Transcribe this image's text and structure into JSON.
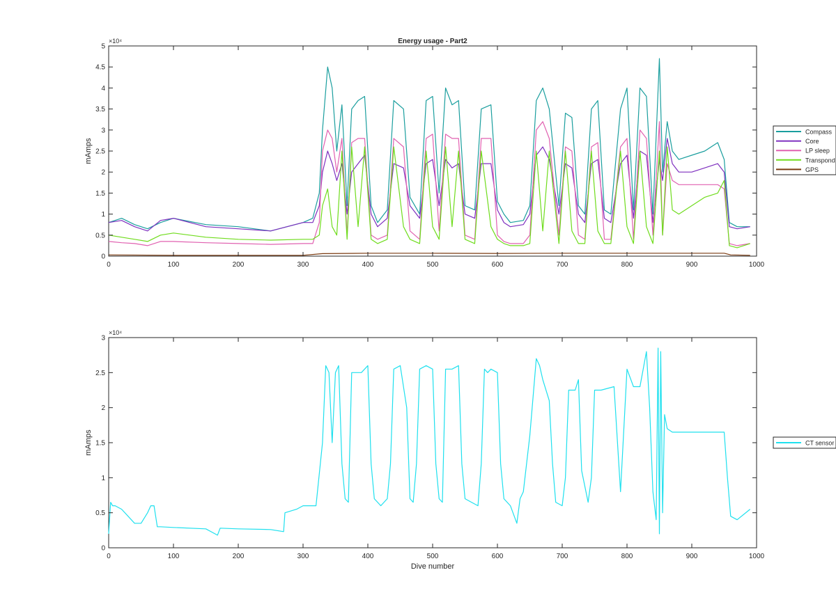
{
  "chart_data": [
    {
      "type": "line",
      "title": "Energy usage - Part2",
      "xlabel": "",
      "ylabel": "mAmps",
      "xlim": [
        0,
        1000
      ],
      "ylim": [
        0,
        50000
      ],
      "y_exponent_label": "×10⁴",
      "xticks": [
        0,
        100,
        200,
        300,
        400,
        500,
        600,
        700,
        800,
        900,
        1000
      ],
      "xtick_labels": [
        "0",
        "100",
        "200",
        "300",
        "400",
        "500",
        "600",
        "700",
        "800",
        "900",
        "1000"
      ],
      "yticks": [
        0,
        5000,
        10000,
        15000,
        20000,
        25000,
        30000,
        35000,
        40000,
        45000,
        50000
      ],
      "ytick_labels": [
        "0",
        "0.5",
        "1",
        "1.5",
        "2",
        "2.5",
        "3",
        "3.5",
        "4",
        "4.5",
        "5"
      ],
      "grid": false,
      "legend_position": "outside-right",
      "series": [
        {
          "name": "Compass",
          "color": "#1a9e9e",
          "x": [
            0,
            20,
            40,
            60,
            80,
            100,
            150,
            200,
            250,
            300,
            315,
            325,
            330,
            338,
            345,
            352,
            360,
            368,
            375,
            385,
            395,
            405,
            415,
            430,
            440,
            455,
            465,
            480,
            490,
            500,
            510,
            520,
            530,
            540,
            550,
            565,
            575,
            590,
            600,
            610,
            620,
            640,
            650,
            660,
            670,
            680,
            695,
            705,
            715,
            725,
            735,
            745,
            755,
            765,
            775,
            790,
            800,
            810,
            820,
            830,
            840,
            850,
            855,
            862,
            870,
            880,
            900,
            920,
            940,
            950,
            958,
            970,
            990
          ],
          "y": [
            8000,
            9000,
            7500,
            6500,
            8000,
            9000,
            7500,
            7000,
            6000,
            8000,
            9000,
            15000,
            30000,
            45000,
            40000,
            25000,
            36000,
            12000,
            35000,
            37000,
            38000,
            12000,
            8000,
            11000,
            37000,
            35000,
            14000,
            10000,
            37000,
            38000,
            15000,
            40000,
            36000,
            37000,
            12000,
            11000,
            35000,
            36000,
            13000,
            10000,
            8000,
            8500,
            12000,
            37000,
            40000,
            35000,
            12000,
            34000,
            33000,
            12000,
            10000,
            35000,
            37000,
            11000,
            10000,
            35000,
            40000,
            11000,
            40000,
            38000,
            10000,
            47000,
            20000,
            32000,
            25000,
            23000,
            24000,
            25000,
            27000,
            23000,
            8000,
            7000,
            7000
          ]
        },
        {
          "name": "Core",
          "color": "#7e2fbf",
          "x": [
            0,
            20,
            40,
            60,
            80,
            100,
            150,
            200,
            250,
            300,
            315,
            325,
            330,
            338,
            345,
            352,
            360,
            368,
            375,
            385,
            395,
            405,
            415,
            430,
            440,
            455,
            465,
            480,
            490,
            500,
            510,
            520,
            530,
            540,
            550,
            565,
            575,
            590,
            600,
            610,
            620,
            640,
            650,
            660,
            670,
            680,
            695,
            705,
            715,
            725,
            735,
            745,
            755,
            765,
            775,
            790,
            800,
            810,
            820,
            830,
            840,
            850,
            855,
            862,
            870,
            880,
            900,
            920,
            940,
            950,
            958,
            970,
            990
          ],
          "y": [
            8000,
            8500,
            7000,
            6000,
            8500,
            9000,
            7000,
            6500,
            6000,
            8000,
            8000,
            12000,
            20000,
            25000,
            22000,
            18000,
            22000,
            10000,
            20000,
            22000,
            24000,
            10000,
            7000,
            9000,
            22000,
            21000,
            12000,
            9000,
            22000,
            23000,
            12000,
            23000,
            21000,
            22000,
            10000,
            9000,
            22000,
            22000,
            11000,
            8000,
            7000,
            7500,
            10000,
            24000,
            26000,
            23000,
            10000,
            22000,
            21000,
            10000,
            8000,
            22000,
            23000,
            9000,
            8000,
            22000,
            24000,
            9000,
            25000,
            24000,
            8000,
            23000,
            18000,
            28000,
            22000,
            20000,
            20000,
            21000,
            22000,
            20000,
            7000,
            6500,
            7000
          ]
        },
        {
          "name": "LP sleep",
          "color": "#e060b0",
          "x": [
            0,
            20,
            40,
            60,
            80,
            100,
            150,
            200,
            250,
            300,
            315,
            325,
            330,
            338,
            345,
            352,
            360,
            368,
            375,
            385,
            395,
            405,
            415,
            430,
            440,
            455,
            465,
            480,
            490,
            500,
            510,
            520,
            530,
            540,
            550,
            565,
            575,
            590,
            600,
            610,
            620,
            640,
            650,
            660,
            670,
            680,
            695,
            705,
            715,
            725,
            735,
            745,
            755,
            765,
            775,
            790,
            800,
            810,
            820,
            830,
            840,
            850,
            855,
            862,
            870,
            880,
            900,
            920,
            940,
            950,
            958,
            970,
            990
          ],
          "y": [
            3500,
            3200,
            3000,
            2500,
            3500,
            3500,
            3200,
            3000,
            2800,
            3000,
            3000,
            8000,
            25000,
            30000,
            28000,
            20000,
            28000,
            5000,
            27000,
            28000,
            28000,
            5000,
            4000,
            5000,
            28000,
            26000,
            6000,
            4000,
            28000,
            29000,
            6000,
            29000,
            28000,
            28000,
            5000,
            4000,
            28000,
            28000,
            5000,
            3500,
            3000,
            3000,
            5000,
            30000,
            32000,
            28000,
            5000,
            26000,
            25000,
            5000,
            4000,
            26000,
            27000,
            4000,
            4000,
            26000,
            28000,
            4000,
            30000,
            28000,
            5000,
            32000,
            5000,
            22000,
            18000,
            17000,
            17000,
            17000,
            17000,
            16000,
            3000,
            2500,
            3000
          ]
        },
        {
          "name": "Transpond",
          "color": "#6fdc1c",
          "x": [
            0,
            20,
            40,
            60,
            80,
            100,
            150,
            200,
            250,
            300,
            315,
            325,
            330,
            338,
            345,
            352,
            360,
            368,
            375,
            385,
            395,
            405,
            415,
            430,
            440,
            455,
            465,
            480,
            490,
            500,
            510,
            520,
            530,
            540,
            550,
            565,
            575,
            590,
            600,
            610,
            620,
            640,
            650,
            660,
            670,
            680,
            695,
            705,
            715,
            725,
            735,
            745,
            755,
            765,
            775,
            790,
            800,
            810,
            820,
            830,
            840,
            850,
            855,
            862,
            870,
            880,
            900,
            920,
            940,
            950,
            958,
            970,
            990
          ],
          "y": [
            5000,
            4500,
            4000,
            3500,
            5000,
            5500,
            4500,
            4000,
            3800,
            4000,
            4000,
            5000,
            12000,
            16000,
            7000,
            5000,
            25000,
            4000,
            26000,
            7000,
            26000,
            4000,
            3000,
            4000,
            26000,
            7000,
            4000,
            3000,
            25000,
            7000,
            4000,
            26000,
            7000,
            25000,
            4000,
            3000,
            25000,
            7000,
            4000,
            3000,
            2500,
            2500,
            3000,
            25000,
            6000,
            25000,
            3000,
            25000,
            6000,
            3000,
            3000,
            25000,
            6000,
            3000,
            3000,
            25000,
            7000,
            3000,
            25000,
            7000,
            3000,
            25000,
            5000,
            26000,
            11000,
            10000,
            12000,
            14000,
            15000,
            18000,
            2500,
            2000,
            3000
          ]
        },
        {
          "name": "GPS",
          "color": "#7a3a10",
          "x": [
            0,
            100,
            200,
            300,
            330,
            400,
            500,
            600,
            700,
            800,
            850,
            900,
            950,
            960,
            990
          ],
          "y": [
            300,
            200,
            200,
            200,
            600,
            700,
            700,
            650,
            700,
            700,
            700,
            700,
            700,
            300,
            200
          ]
        }
      ]
    },
    {
      "type": "line",
      "title": "",
      "xlabel": "Dive number",
      "ylabel": "mAmps",
      "xlim": [
        0,
        1000
      ],
      "ylim": [
        0,
        30000
      ],
      "y_exponent_label": "×10⁴",
      "xticks": [
        0,
        100,
        200,
        300,
        400,
        500,
        600,
        700,
        800,
        900,
        1000
      ],
      "xtick_labels": [
        "0",
        "100",
        "200",
        "300",
        "400",
        "500",
        "600",
        "700",
        "800",
        "900",
        "1000"
      ],
      "yticks": [
        0,
        5000,
        10000,
        15000,
        20000,
        25000,
        30000
      ],
      "ytick_labels": [
        "0",
        "0.5",
        "1",
        "1.5",
        "2",
        "2.5",
        "3"
      ],
      "grid": false,
      "legend_position": "outside-right",
      "series": [
        {
          "name": "CT sensor",
          "color": "#1ee0ee",
          "x": [
            0,
            3,
            6,
            10,
            20,
            40,
            50,
            60,
            65,
            70,
            75,
            77,
            80,
            100,
            150,
            168,
            172,
            200,
            250,
            270,
            272,
            290,
            300,
            320,
            330,
            335,
            340,
            345,
            350,
            355,
            360,
            365,
            370,
            375,
            380,
            390,
            400,
            405,
            410,
            420,
            430,
            435,
            440,
            450,
            460,
            465,
            470,
            475,
            480,
            490,
            500,
            505,
            510,
            515,
            520,
            530,
            540,
            545,
            550,
            560,
            570,
            575,
            580,
            585,
            590,
            600,
            605,
            610,
            620,
            630,
            635,
            640,
            650,
            660,
            665,
            670,
            680,
            685,
            690,
            700,
            705,
            710,
            720,
            725,
            730,
            740,
            745,
            750,
            760,
            780,
            790,
            800,
            810,
            820,
            830,
            835,
            840,
            845,
            848,
            850,
            852,
            855,
            858,
            862,
            870,
            880,
            900,
            920,
            940,
            950,
            955,
            960,
            970,
            990
          ],
          "y": [
            2000,
            6500,
            6000,
            6000,
            5500,
            3500,
            3500,
            5000,
            6000,
            6000,
            3000,
            3000,
            3000,
            2900,
            2700,
            1800,
            2800,
            2700,
            2600,
            2300,
            5000,
            5500,
            6000,
            6000,
            15000,
            26000,
            25000,
            15000,
            25000,
            26000,
            12000,
            7000,
            6500,
            25000,
            25000,
            25000,
            26000,
            12000,
            7000,
            6000,
            7000,
            12000,
            25500,
            26000,
            20000,
            7000,
            6500,
            12000,
            25500,
            26000,
            25500,
            12000,
            7000,
            6500,
            25500,
            25500,
            26000,
            12000,
            7000,
            6500,
            6000,
            12000,
            25500,
            25000,
            25500,
            25000,
            12000,
            7000,
            6000,
            3500,
            7000,
            8000,
            16000,
            27000,
            26000,
            24000,
            21000,
            12000,
            6500,
            6000,
            10000,
            22500,
            22500,
            24000,
            11000,
            6500,
            10000,
            22500,
            22500,
            23000,
            8000,
            25500,
            23000,
            23000,
            28000,
            20000,
            8000,
            4000,
            28500,
            2000,
            28000,
            5000,
            19000,
            17000,
            16500,
            16500,
            16500,
            16500,
            16500,
            16500,
            10000,
            4500,
            4000,
            5500
          ]
        }
      ]
    }
  ]
}
